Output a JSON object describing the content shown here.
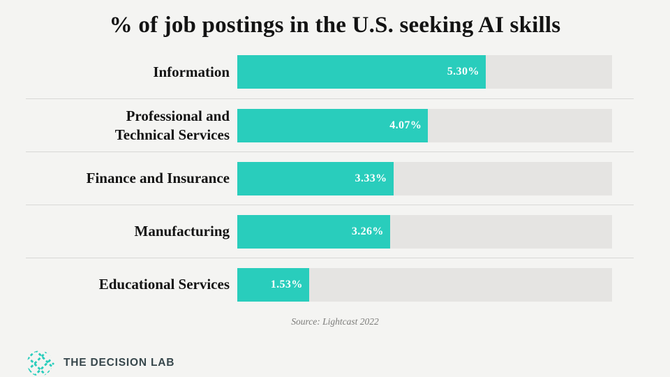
{
  "title": "% of job postings in the U.S. seeking AI skills",
  "source_note": "Source: Lightcast 2022",
  "brand": {
    "name": "THE DECISION LAB",
    "icon": "decision-lab-brain-icon"
  },
  "colors": {
    "background": "#f4f4f2",
    "bar_fill": "#29cdbc",
    "bar_track": "#e5e4e2",
    "divider": "#d8d8d6",
    "title_text": "#131313",
    "value_text": "#ffffff",
    "source_text": "#7c7c7a",
    "brand_text": "#37474c"
  },
  "chart_data": {
    "type": "bar",
    "orientation": "horizontal",
    "title": "% of job postings in the U.S. seeking AI skills",
    "categories": [
      "Information",
      "Professional and Technical Services",
      "Finance and Insurance",
      "Manufacturing",
      "Educational Services"
    ],
    "category_lines": [
      [
        "Information"
      ],
      [
        "Professional and",
        "Technical Services"
      ],
      [
        "Finance and Insurance"
      ],
      [
        "Manufacturing"
      ],
      [
        "Educational Services"
      ]
    ],
    "values": [
      5.3,
      4.07,
      3.33,
      3.26,
      1.53
    ],
    "value_labels": [
      "5.30%",
      "4.07%",
      "3.33%",
      "3.26%",
      "1.53%"
    ],
    "unit": "%",
    "xlim": [
      0,
      8
    ],
    "grid": false,
    "legend": false,
    "value_label_position": "inside-right",
    "source": "Source: Lightcast 2022"
  }
}
